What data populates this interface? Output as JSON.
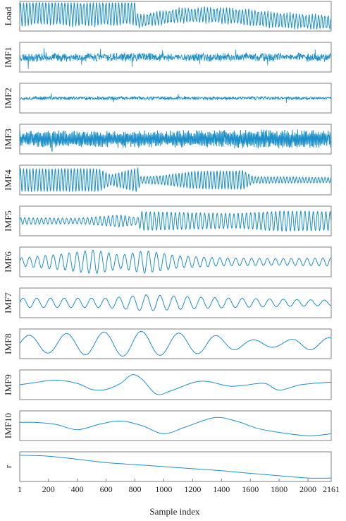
{
  "chart_data": {
    "type": "line",
    "xlabel": "Sample index",
    "xlim": [
      1,
      2161
    ],
    "x_ticks": [
      1,
      200,
      400,
      600,
      800,
      1000,
      1200,
      1400,
      1600,
      1800,
      2000,
      2161
    ],
    "x_tick_labels": [
      "1",
      "200",
      "400",
      "600",
      "800",
      "1000",
      "1200",
      "1400",
      "1600",
      "1800",
      "2000",
      "2161"
    ],
    "line_color": "#1b8fc9",
    "frame_color": "#808080",
    "series": [
      {
        "name": "Load",
        "kind": "signal",
        "seed": 11,
        "noise": 0.05,
        "components": [
          {
            "amp": [
              [
                0,
                0.85
              ],
              [
                800,
                0.85
              ],
              [
                820,
                0.42
              ],
              [
                1600,
                0.55
              ],
              [
                2161,
                0.45
              ]
            ],
            "period": 22
          },
          {
            "amp": [
              [
                0,
                0.1
              ],
              [
                2161,
                0.1
              ]
            ],
            "period": 7
          }
        ],
        "offset": [
          [
            0,
            0.15
          ],
          [
            150,
            0.3
          ],
          [
            400,
            0.15
          ],
          [
            800,
            0.25
          ],
          [
            820,
            -0.35
          ],
          [
            1100,
            0.05
          ],
          [
            1300,
            0.1
          ],
          [
            1500,
            0.0
          ],
          [
            1800,
            -0.3
          ],
          [
            2161,
            -0.45
          ]
        ]
      },
      {
        "name": "IMF1",
        "kind": "noise",
        "seed": 23,
        "level": 0.35,
        "spikes": [
          [
            60,
            -0.85
          ],
          [
            170,
            0.65
          ],
          [
            430,
            -0.55
          ],
          [
            560,
            0.6
          ],
          [
            780,
            -0.7
          ],
          [
            990,
            0.5
          ],
          [
            1250,
            -0.5
          ],
          [
            1500,
            0.55
          ],
          [
            1720,
            -0.6
          ],
          [
            2050,
            0.55
          ]
        ]
      },
      {
        "name": "IMF2",
        "kind": "noise",
        "seed": 37,
        "level": 0.15,
        "spikes": [
          [
            220,
            0.35
          ],
          [
            650,
            -0.3
          ],
          [
            1100,
            0.3
          ],
          [
            1850,
            -0.35
          ]
        ]
      },
      {
        "name": "IMF3",
        "kind": "signal",
        "seed": 41,
        "noise": 0.22,
        "components": [
          {
            "amp": [
              [
                0,
                0.4
              ],
              [
                2161,
                0.5
              ]
            ],
            "period": 9
          }
        ],
        "spikes": [
          [
            225,
            -0.9
          ],
          [
            80,
            0.6
          ],
          [
            235,
            0.55
          ],
          [
            1420,
            0.65
          ],
          [
            2140,
            0.6
          ]
        ]
      },
      {
        "name": "IMF4",
        "kind": "signal",
        "seed": 53,
        "noise": 0.02,
        "components": [
          {
            "amp": [
              [
                0,
                0.85
              ],
              [
                550,
                0.85
              ],
              [
                630,
                0.4
              ],
              [
                760,
                0.75
              ],
              [
                820,
                0.9
              ],
              [
                840,
                0.25
              ],
              [
                1000,
                0.35
              ],
              [
                1200,
                0.65
              ],
              [
                1550,
                0.7
              ],
              [
                1620,
                0.25
              ],
              [
                2161,
                0.2
              ]
            ],
            "period": 22
          }
        ]
      },
      {
        "name": "IMF5",
        "kind": "signal",
        "seed": 67,
        "noise": 0.02,
        "components": [
          {
            "amp": [
              [
                0,
                0.25
              ],
              [
                400,
                0.2
              ],
              [
                700,
                0.45
              ],
              [
                820,
                0.25
              ],
              [
                840,
                0.7
              ],
              [
                1500,
                0.55
              ],
              [
                1800,
                0.75
              ],
              [
                2161,
                0.7
              ]
            ],
            "period": 29
          }
        ]
      },
      {
        "name": "IMF6",
        "kind": "signal",
        "seed": 79,
        "noise": 0.01,
        "components": [
          {
            "amp": [
              [
                0,
                0.3
              ],
              [
                300,
                0.6
              ],
              [
                520,
                0.9
              ],
              [
                700,
                0.5
              ],
              [
                870,
                0.85
              ],
              [
                1100,
                0.45
              ],
              [
                1400,
                0.3
              ],
              [
                1800,
                0.25
              ],
              [
                2161,
                0.3
              ]
            ],
            "period": 55
          }
        ]
      },
      {
        "name": "IMF7",
        "kind": "signal",
        "seed": 83,
        "noise": 0.0,
        "components": [
          {
            "amp": [
              [
                0,
                0.35
              ],
              [
                600,
                0.35
              ],
              [
                870,
                0.6
              ],
              [
                1000,
                0.55
              ],
              [
                1300,
                0.4
              ],
              [
                1700,
                0.3
              ],
              [
                2161,
                0.2
              ]
            ],
            "period": 95
          }
        ]
      },
      {
        "name": "IMF8",
        "kind": "signal",
        "seed": 97,
        "noise": 0.0,
        "components": [
          {
            "amp": [
              [
                0,
                0.6
              ],
              [
                400,
                0.8
              ],
              [
                800,
                0.95
              ],
              [
                900,
                0.9
              ],
              [
                1300,
                0.7
              ],
              [
                1600,
                0.3
              ],
              [
                1800,
                0.25
              ],
              [
                2000,
                0.45
              ],
              [
                2161,
                0.45
              ]
            ],
            "period": 260
          }
        ]
      },
      {
        "name": "IMF9",
        "kind": "points",
        "points": [
          [
            1,
            0.0
          ],
          [
            100,
            0.15
          ],
          [
            250,
            0.35
          ],
          [
            400,
            0.1
          ],
          [
            500,
            -0.35
          ],
          [
            600,
            -0.35
          ],
          [
            700,
            0.1
          ],
          [
            780,
            0.75
          ],
          [
            850,
            0.4
          ],
          [
            950,
            -0.7
          ],
          [
            1050,
            -0.45
          ],
          [
            1200,
            0.15
          ],
          [
            1300,
            0.25
          ],
          [
            1450,
            -0.1
          ],
          [
            1550,
            -0.05
          ],
          [
            1700,
            0.1
          ],
          [
            1800,
            -0.4
          ],
          [
            1950,
            0.0
          ],
          [
            2161,
            0.2
          ]
        ]
      },
      {
        "name": "IMF10",
        "kind": "points",
        "points": [
          [
            1,
            0.25
          ],
          [
            100,
            0.25
          ],
          [
            250,
            0.1
          ],
          [
            400,
            -0.3
          ],
          [
            550,
            0.1
          ],
          [
            700,
            0.35
          ],
          [
            850,
            0.0
          ],
          [
            1000,
            -0.6
          ],
          [
            1150,
            -0.1
          ],
          [
            1350,
            0.6
          ],
          [
            1500,
            0.35
          ],
          [
            1650,
            -0.2
          ],
          [
            1800,
            -0.5
          ],
          [
            2000,
            -0.75
          ],
          [
            2161,
            -0.6
          ]
        ]
      },
      {
        "name": "r",
        "kind": "points",
        "points": [
          [
            1,
            0.85
          ],
          [
            200,
            0.78
          ],
          [
            400,
            0.55
          ],
          [
            600,
            0.3
          ],
          [
            800,
            0.15
          ],
          [
            1000,
            0.0
          ],
          [
            1200,
            -0.15
          ],
          [
            1400,
            -0.3
          ],
          [
            1600,
            -0.5
          ],
          [
            1800,
            -0.68
          ],
          [
            2000,
            -0.85
          ],
          [
            2161,
            -0.85
          ]
        ]
      }
    ]
  }
}
